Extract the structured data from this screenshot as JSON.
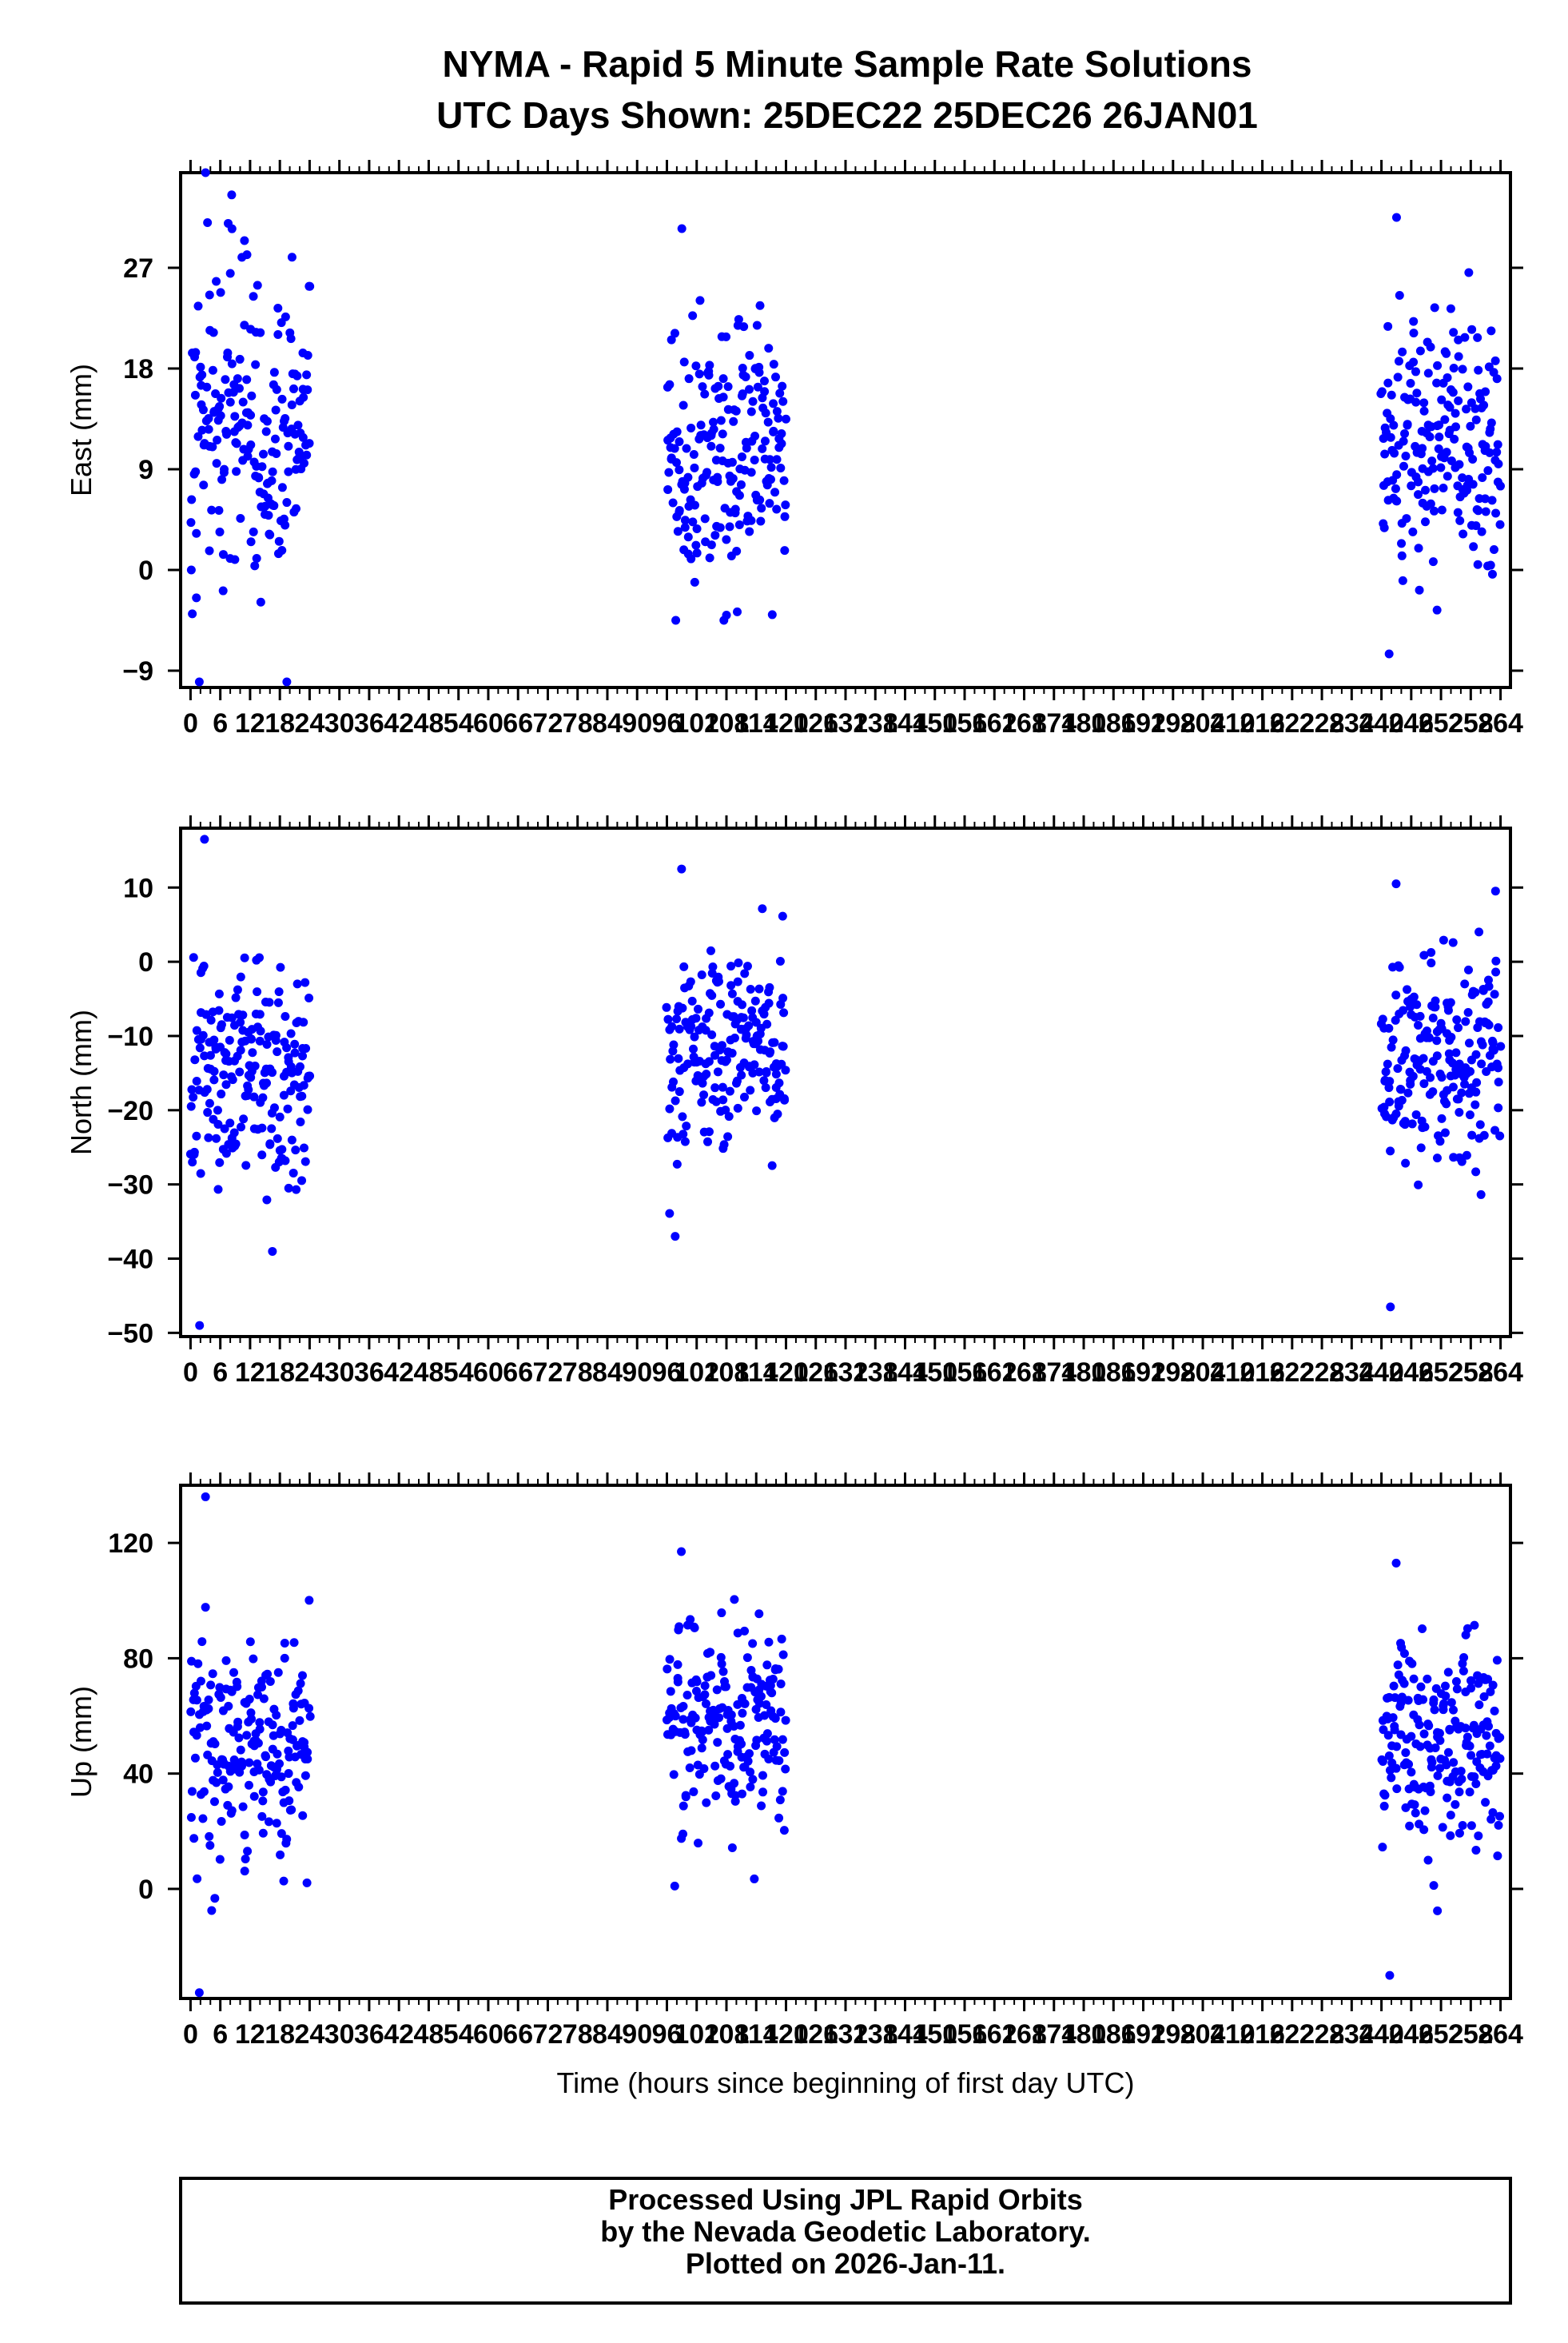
{
  "header": {
    "title_line1": "NYMA - Rapid 5 Minute Sample Rate Solutions",
    "title_line2": "UTC Days Shown:  25DEC22 25DEC26 26JAN01"
  },
  "footer": {
    "line1": "Processed Using JPL Rapid Orbits",
    "line2": "by the Nevada Geodetic Laboratory.",
    "line3": "Plotted on 2026-Jan-11."
  },
  "colors": {
    "points": "#0000ff",
    "axes": "#000000",
    "background": "#ffffff"
  },
  "chart_data": [
    {
      "type": "scatter",
      "ylabel": "East (mm)",
      "xlabel": "",
      "xlim": [
        -2,
        266
      ],
      "ylim": [
        -10.5,
        35.5
      ],
      "xticks": [
        0,
        6,
        12,
        18,
        24,
        30,
        36,
        42,
        48,
        54,
        60,
        66,
        72,
        78,
        84,
        90,
        96,
        102,
        108,
        114,
        120,
        126,
        132,
        138,
        144,
        150,
        156,
        162,
        168,
        174,
        180,
        186,
        192,
        198,
        204,
        210,
        216,
        222,
        228,
        234,
        240,
        246,
        252,
        258,
        264
      ],
      "yticks": [
        -9,
        0,
        9,
        18,
        27
      ],
      "blocks": [
        {
          "x_range": [
            0,
            24
          ],
          "mean": 12,
          "spread": 7,
          "min": -10,
          "max": 35.5,
          "count": 200
        },
        {
          "x_range": [
            96,
            120
          ],
          "mean": 11,
          "spread": 6,
          "min": -4.5,
          "max": 30.5,
          "count": 200
        },
        {
          "x_range": [
            240,
            264
          ],
          "mean": 11,
          "spread": 6.5,
          "min": -7.5,
          "max": 31.5,
          "count": 200
        }
      ]
    },
    {
      "type": "scatter",
      "ylabel": "North (mm)",
      "xlabel": "",
      "xlim": [
        -2,
        266
      ],
      "ylim": [
        -50.5,
        18
      ],
      "xticks": [
        0,
        6,
        12,
        18,
        24,
        30,
        36,
        42,
        48,
        54,
        60,
        66,
        72,
        78,
        84,
        90,
        96,
        102,
        108,
        114,
        120,
        126,
        132,
        138,
        144,
        150,
        156,
        162,
        168,
        174,
        180,
        186,
        192,
        198,
        204,
        210,
        216,
        222,
        228,
        234,
        240,
        246,
        252,
        258,
        264
      ],
      "yticks": [
        -50,
        -40,
        -30,
        -20,
        -10,
        0,
        10
      ],
      "blocks": [
        {
          "x_range": [
            0,
            24
          ],
          "mean": -16,
          "spread": 8,
          "min": -49,
          "max": 16.5,
          "count": 200
        },
        {
          "x_range": [
            96,
            120
          ],
          "mean": -13,
          "spread": 6.5,
          "min": -37,
          "max": 12.5,
          "count": 200
        },
        {
          "x_range": [
            240,
            264
          ],
          "mean": -13,
          "spread": 7.5,
          "min": -46.5,
          "max": 10.5,
          "count": 200
        }
      ]
    },
    {
      "type": "scatter",
      "ylabel": "Up (mm)",
      "xlabel": "Time (hours since beginning of first day UTC)",
      "xlim": [
        -2,
        266
      ],
      "ylim": [
        -38,
        140
      ],
      "xticks": [
        0,
        6,
        12,
        18,
        24,
        30,
        36,
        42,
        48,
        54,
        60,
        66,
        72,
        78,
        84,
        90,
        96,
        102,
        108,
        114,
        120,
        126,
        132,
        138,
        144,
        150,
        156,
        162,
        168,
        174,
        180,
        186,
        192,
        198,
        204,
        210,
        216,
        222,
        228,
        234,
        240,
        246,
        252,
        258,
        264
      ],
      "yticks": [
        0,
        40,
        80,
        120
      ],
      "blocks": [
        {
          "x_range": [
            0,
            24
          ],
          "mean": 48,
          "spread": 20,
          "min": -36,
          "max": 136,
          "count": 200
        },
        {
          "x_range": [
            96,
            120
          ],
          "mean": 56,
          "spread": 19,
          "min": 1,
          "max": 117,
          "count": 200
        },
        {
          "x_range": [
            240,
            264
          ],
          "mean": 50,
          "spread": 18,
          "min": -30,
          "max": 113,
          "count": 200
        }
      ]
    }
  ]
}
